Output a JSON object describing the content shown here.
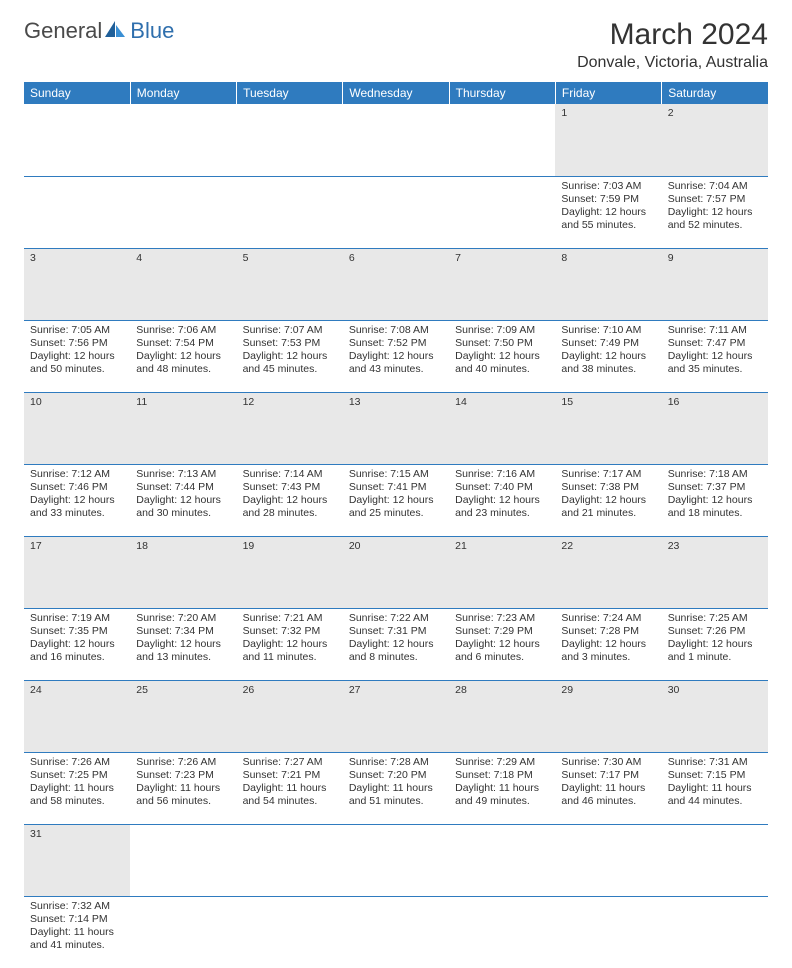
{
  "brand": {
    "part1": "General",
    "part2": "Blue"
  },
  "title": "March 2024",
  "location": "Donvale, Victoria, Australia",
  "colors": {
    "header_bg": "#2f7bbf",
    "header_text": "#ffffff",
    "daynum_bg": "#e8e8e8",
    "border": "#2f7bbf",
    "text": "#333333",
    "brand_blue": "#2f6fad"
  },
  "weekdays": [
    "Sunday",
    "Monday",
    "Tuesday",
    "Wednesday",
    "Thursday",
    "Friday",
    "Saturday"
  ],
  "weeks": [
    [
      null,
      null,
      null,
      null,
      null,
      {
        "n": "1",
        "sunrise": "Sunrise: 7:03 AM",
        "sunset": "Sunset: 7:59 PM",
        "day1": "Daylight: 12 hours",
        "day2": "and 55 minutes."
      },
      {
        "n": "2",
        "sunrise": "Sunrise: 7:04 AM",
        "sunset": "Sunset: 7:57 PM",
        "day1": "Daylight: 12 hours",
        "day2": "and 52 minutes."
      }
    ],
    [
      {
        "n": "3",
        "sunrise": "Sunrise: 7:05 AM",
        "sunset": "Sunset: 7:56 PM",
        "day1": "Daylight: 12 hours",
        "day2": "and 50 minutes."
      },
      {
        "n": "4",
        "sunrise": "Sunrise: 7:06 AM",
        "sunset": "Sunset: 7:54 PM",
        "day1": "Daylight: 12 hours",
        "day2": "and 48 minutes."
      },
      {
        "n": "5",
        "sunrise": "Sunrise: 7:07 AM",
        "sunset": "Sunset: 7:53 PM",
        "day1": "Daylight: 12 hours",
        "day2": "and 45 minutes."
      },
      {
        "n": "6",
        "sunrise": "Sunrise: 7:08 AM",
        "sunset": "Sunset: 7:52 PM",
        "day1": "Daylight: 12 hours",
        "day2": "and 43 minutes."
      },
      {
        "n": "7",
        "sunrise": "Sunrise: 7:09 AM",
        "sunset": "Sunset: 7:50 PM",
        "day1": "Daylight: 12 hours",
        "day2": "and 40 minutes."
      },
      {
        "n": "8",
        "sunrise": "Sunrise: 7:10 AM",
        "sunset": "Sunset: 7:49 PM",
        "day1": "Daylight: 12 hours",
        "day2": "and 38 minutes."
      },
      {
        "n": "9",
        "sunrise": "Sunrise: 7:11 AM",
        "sunset": "Sunset: 7:47 PM",
        "day1": "Daylight: 12 hours",
        "day2": "and 35 minutes."
      }
    ],
    [
      {
        "n": "10",
        "sunrise": "Sunrise: 7:12 AM",
        "sunset": "Sunset: 7:46 PM",
        "day1": "Daylight: 12 hours",
        "day2": "and 33 minutes."
      },
      {
        "n": "11",
        "sunrise": "Sunrise: 7:13 AM",
        "sunset": "Sunset: 7:44 PM",
        "day1": "Daylight: 12 hours",
        "day2": "and 30 minutes."
      },
      {
        "n": "12",
        "sunrise": "Sunrise: 7:14 AM",
        "sunset": "Sunset: 7:43 PM",
        "day1": "Daylight: 12 hours",
        "day2": "and 28 minutes."
      },
      {
        "n": "13",
        "sunrise": "Sunrise: 7:15 AM",
        "sunset": "Sunset: 7:41 PM",
        "day1": "Daylight: 12 hours",
        "day2": "and 25 minutes."
      },
      {
        "n": "14",
        "sunrise": "Sunrise: 7:16 AM",
        "sunset": "Sunset: 7:40 PM",
        "day1": "Daylight: 12 hours",
        "day2": "and 23 minutes."
      },
      {
        "n": "15",
        "sunrise": "Sunrise: 7:17 AM",
        "sunset": "Sunset: 7:38 PM",
        "day1": "Daylight: 12 hours",
        "day2": "and 21 minutes."
      },
      {
        "n": "16",
        "sunrise": "Sunrise: 7:18 AM",
        "sunset": "Sunset: 7:37 PM",
        "day1": "Daylight: 12 hours",
        "day2": "and 18 minutes."
      }
    ],
    [
      {
        "n": "17",
        "sunrise": "Sunrise: 7:19 AM",
        "sunset": "Sunset: 7:35 PM",
        "day1": "Daylight: 12 hours",
        "day2": "and 16 minutes."
      },
      {
        "n": "18",
        "sunrise": "Sunrise: 7:20 AM",
        "sunset": "Sunset: 7:34 PM",
        "day1": "Daylight: 12 hours",
        "day2": "and 13 minutes."
      },
      {
        "n": "19",
        "sunrise": "Sunrise: 7:21 AM",
        "sunset": "Sunset: 7:32 PM",
        "day1": "Daylight: 12 hours",
        "day2": "and 11 minutes."
      },
      {
        "n": "20",
        "sunrise": "Sunrise: 7:22 AM",
        "sunset": "Sunset: 7:31 PM",
        "day1": "Daylight: 12 hours",
        "day2": "and 8 minutes."
      },
      {
        "n": "21",
        "sunrise": "Sunrise: 7:23 AM",
        "sunset": "Sunset: 7:29 PM",
        "day1": "Daylight: 12 hours",
        "day2": "and 6 minutes."
      },
      {
        "n": "22",
        "sunrise": "Sunrise: 7:24 AM",
        "sunset": "Sunset: 7:28 PM",
        "day1": "Daylight: 12 hours",
        "day2": "and 3 minutes."
      },
      {
        "n": "23",
        "sunrise": "Sunrise: 7:25 AM",
        "sunset": "Sunset: 7:26 PM",
        "day1": "Daylight: 12 hours",
        "day2": "and 1 minute."
      }
    ],
    [
      {
        "n": "24",
        "sunrise": "Sunrise: 7:26 AM",
        "sunset": "Sunset: 7:25 PM",
        "day1": "Daylight: 11 hours",
        "day2": "and 58 minutes."
      },
      {
        "n": "25",
        "sunrise": "Sunrise: 7:26 AM",
        "sunset": "Sunset: 7:23 PM",
        "day1": "Daylight: 11 hours",
        "day2": "and 56 minutes."
      },
      {
        "n": "26",
        "sunrise": "Sunrise: 7:27 AM",
        "sunset": "Sunset: 7:21 PM",
        "day1": "Daylight: 11 hours",
        "day2": "and 54 minutes."
      },
      {
        "n": "27",
        "sunrise": "Sunrise: 7:28 AM",
        "sunset": "Sunset: 7:20 PM",
        "day1": "Daylight: 11 hours",
        "day2": "and 51 minutes."
      },
      {
        "n": "28",
        "sunrise": "Sunrise: 7:29 AM",
        "sunset": "Sunset: 7:18 PM",
        "day1": "Daylight: 11 hours",
        "day2": "and 49 minutes."
      },
      {
        "n": "29",
        "sunrise": "Sunrise: 7:30 AM",
        "sunset": "Sunset: 7:17 PM",
        "day1": "Daylight: 11 hours",
        "day2": "and 46 minutes."
      },
      {
        "n": "30",
        "sunrise": "Sunrise: 7:31 AM",
        "sunset": "Sunset: 7:15 PM",
        "day1": "Daylight: 11 hours",
        "day2": "and 44 minutes."
      }
    ],
    [
      {
        "n": "31",
        "sunrise": "Sunrise: 7:32 AM",
        "sunset": "Sunset: 7:14 PM",
        "day1": "Daylight: 11 hours",
        "day2": "and 41 minutes."
      },
      null,
      null,
      null,
      null,
      null,
      null
    ]
  ]
}
